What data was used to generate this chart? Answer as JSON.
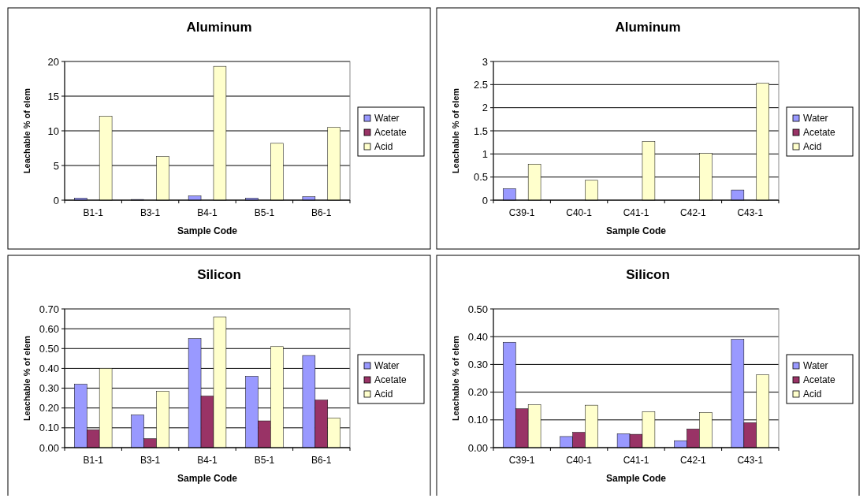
{
  "chart_data": [
    {
      "type": "bar",
      "title": "Aluminum",
      "xlabel": "Sample Code",
      "ylabel": "Leachable % of elem",
      "categories": [
        "B1-1",
        "B3-1",
        "B4-1",
        "B5-1",
        "B6-1"
      ],
      "ylim": [
        0,
        20
      ],
      "yticks": [
        0,
        5,
        10,
        15,
        20
      ],
      "grid": "y",
      "legend": "right",
      "series": [
        {
          "name": "Water",
          "color": "#9999ff",
          "values": [
            0.3,
            0.1,
            0.6,
            0.3,
            0.5
          ]
        },
        {
          "name": "Acetate",
          "color": "#993366",
          "values": [
            0,
            0,
            0,
            0,
            0
          ]
        },
        {
          "name": "Acid",
          "color": "#ffffcc",
          "values": [
            12.1,
            6.3,
            19.3,
            8.2,
            10.5
          ]
        }
      ]
    },
    {
      "type": "bar",
      "title": "Aluminum",
      "xlabel": "Sample Code",
      "ylabel": "Leachable % of elem",
      "categories": [
        "C39-1",
        "C40-1",
        "C41-1",
        "C42-1",
        "C43-1"
      ],
      "ylim": [
        0,
        3
      ],
      "yticks": [
        0,
        0.5,
        1,
        1.5,
        2,
        2.5,
        3
      ],
      "grid": "y",
      "legend": "right",
      "series": [
        {
          "name": "Water",
          "color": "#9999ff",
          "values": [
            0.25,
            0,
            0,
            0,
            0.22
          ]
        },
        {
          "name": "Acetate",
          "color": "#993366",
          "values": [
            0,
            0,
            0,
            0,
            0
          ]
        },
        {
          "name": "Acid",
          "color": "#ffffcc",
          "values": [
            0.78,
            0.43,
            1.27,
            1.01,
            2.53
          ]
        }
      ]
    },
    {
      "type": "bar",
      "title": "Silicon",
      "xlabel": "Sample Code",
      "ylabel": "Leachable % of elem",
      "categories": [
        "B1-1",
        "B3-1",
        "B4-1",
        "B5-1",
        "B6-1"
      ],
      "ylim": [
        0,
        0.7
      ],
      "yticks": [
        {
          "value": 0,
          "label": "0.00"
        },
        {
          "value": 0.1,
          "label": "0.10"
        },
        {
          "value": 0.2,
          "label": "0.20"
        },
        {
          "value": 0.3,
          "label": "0.30"
        },
        {
          "value": 0.4,
          "label": "0.40"
        },
        {
          "value": 0.5,
          "label": "0.50"
        },
        {
          "value": 0.6,
          "label": "0.60"
        },
        {
          "value": 0.7,
          "label": "0.70"
        }
      ],
      "grid": "y",
      "legend": "right",
      "series": [
        {
          "name": "Water",
          "color": "#9999ff",
          "values": [
            0.32,
            0.165,
            0.55,
            0.36,
            0.465
          ]
        },
        {
          "name": "Acetate",
          "color": "#993366",
          "values": [
            0.09,
            0.045,
            0.26,
            0.135,
            0.24
          ]
        },
        {
          "name": "Acid",
          "color": "#ffffcc",
          "values": [
            0.4,
            0.285,
            0.66,
            0.51,
            0.15
          ]
        }
      ]
    },
    {
      "type": "bar",
      "title": "Silicon",
      "xlabel": "Sample Code",
      "ylabel": "Leachable % of elem",
      "categories": [
        "C39-1",
        "C40-1",
        "C41-1",
        "C42-1",
        "C43-1"
      ],
      "ylim": [
        0,
        0.5
      ],
      "yticks": [
        {
          "value": 0,
          "label": "0.00"
        },
        {
          "value": 0.1,
          "label": "0.10"
        },
        {
          "value": 0.2,
          "label": "0.20"
        },
        {
          "value": 0.3,
          "label": "0.30"
        },
        {
          "value": 0.4,
          "label": "0.40"
        },
        {
          "value": 0.5,
          "label": "0.50"
        }
      ],
      "grid": "y",
      "legend": "right",
      "series": [
        {
          "name": "Water",
          "color": "#9999ff",
          "values": [
            0.38,
            0.04,
            0.05,
            0.025,
            0.39
          ]
        },
        {
          "name": "Acetate",
          "color": "#993366",
          "values": [
            0.14,
            0.055,
            0.048,
            0.067,
            0.09
          ]
        },
        {
          "name": "Acid",
          "color": "#ffffcc",
          "values": [
            0.155,
            0.153,
            0.13,
            0.127,
            0.263
          ]
        }
      ]
    }
  ]
}
